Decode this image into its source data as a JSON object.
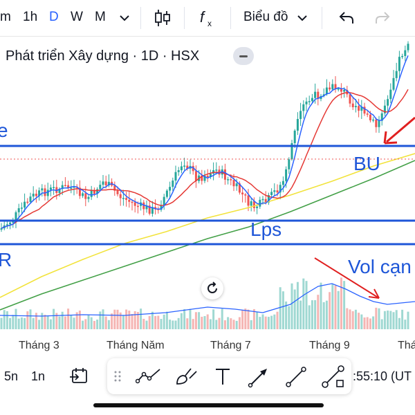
{
  "toolbar": {
    "interval_partial": "m",
    "interval_1h": "1h",
    "interval_d": "D",
    "interval_w": "W",
    "interval_m": "M",
    "chart_type_label": "Biểu đồ"
  },
  "symbol": {
    "legend": "Phát triển Xây dựng · 1D · HSX"
  },
  "annotations": {
    "bu": "BU",
    "lps": "Lps",
    "vol": "Vol cạn",
    "left_r": "R",
    "left_e": "e"
  },
  "xaxis": {
    "labels": [
      "Tháng 3",
      "Tháng Năm",
      "Tháng 7",
      "Tháng 9",
      "Thá"
    ]
  },
  "bottom": {
    "range_5n": "5n",
    "range_1n": "1n",
    "time": ":55:10 (UT"
  },
  "colors": {
    "up": "#26a69a",
    "down": "#ef5350",
    "ma_blue": "#2962ff",
    "ma_red": "#e53935",
    "ma_yellow": "#f2e33c",
    "ma_green": "#43a047",
    "annotation_blue": "#1e56d8",
    "arrow_red": "#e02020",
    "accent": "#2962ff"
  },
  "icons": [
    "chevron-down-icon",
    "candles-icon",
    "fx-icon",
    "undo-icon",
    "redo-icon",
    "reset-icon",
    "calendar-goto-icon",
    "trend-line-icon",
    "brush-icon",
    "text-icon",
    "arrow-icon",
    "line-icon",
    "path-icon",
    "drag-handle-icon"
  ]
}
